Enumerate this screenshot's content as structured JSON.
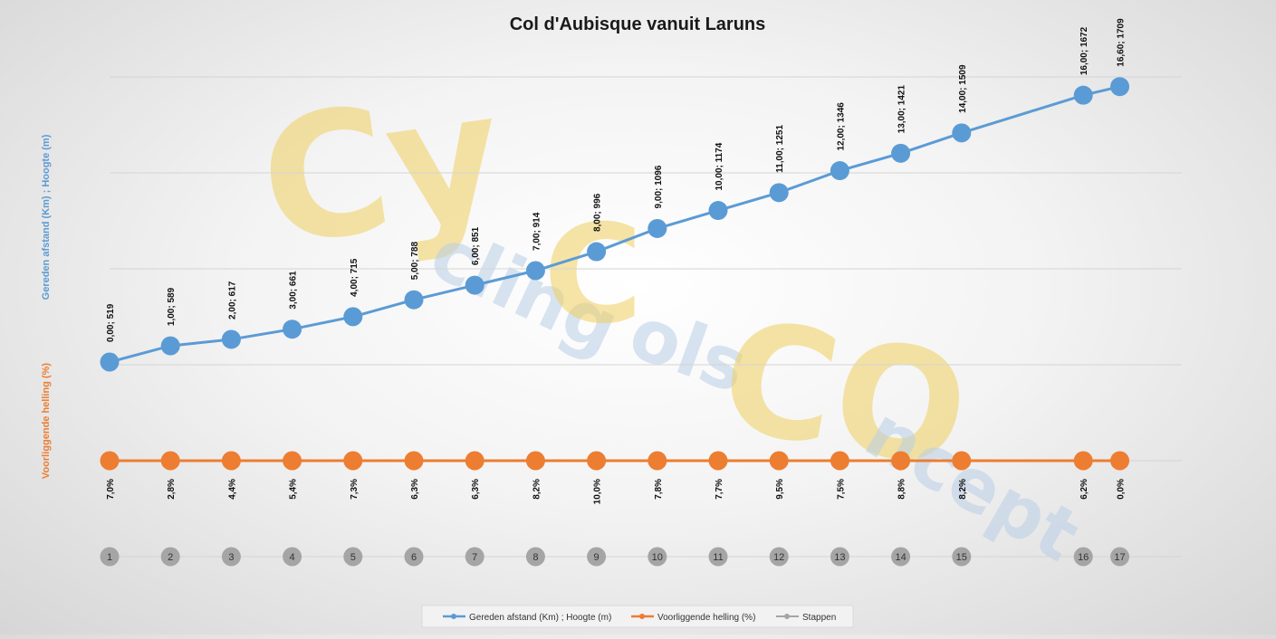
{
  "chart_data": {
    "type": "line",
    "title": "Col d'Aubisque vanuit Laruns",
    "ylabel_left_top": "Gereden afstand (Km) ;  Hoogte (m)",
    "ylabel_left_bottom": "Voorliggende helling (%)",
    "grid": true,
    "legend_position": "bottom",
    "colors": {
      "height": "#5b9bd5",
      "slope": "#ed7d31",
      "steps": "#a5a5a5"
    },
    "watermark": "CyclingColsConcept",
    "series": [
      {
        "name": "Gereden afstand (Km) ; Hoogte (m)",
        "x": [
          0.0,
          1.0,
          2.0,
          3.0,
          4.0,
          5.0,
          6.0,
          7.0,
          8.0,
          9.0,
          10.0,
          11.0,
          12.0,
          13.0,
          14.0,
          16.0,
          16.6
        ],
        "y": [
          519,
          589,
          617,
          661,
          715,
          788,
          851,
          914,
          996,
          1096,
          1174,
          1251,
          1346,
          1421,
          1509,
          1672,
          1709
        ],
        "labels": [
          "0,00; 519",
          "1,00; 589",
          "2,00; 617",
          "3,00; 661",
          "4,00; 715",
          "5,00; 788",
          "6,00; 851",
          "7,00; 914",
          "8,00; 996",
          "9,00; 1096",
          "10,00; 1174",
          "11,00; 1251",
          "12,00; 1346",
          "13,00; 1421",
          "14,00; 1509",
          "16,00; 1672",
          "16,60; 1709"
        ]
      },
      {
        "name": "Voorliggende helling (%)",
        "values": [
          7.0,
          2.8,
          4.4,
          5.4,
          7.3,
          6.3,
          6.3,
          8.2,
          10.0,
          7.8,
          7.7,
          9.5,
          7.5,
          8.8,
          8.2,
          6.2,
          0.0
        ],
        "labels": [
          "7,0%",
          "2,8%",
          "4,4%",
          "5,4%",
          "7,3%",
          "6,3%",
          "6,3%",
          "8,2%",
          "10,0%",
          "7,8%",
          "7,7%",
          "9,5%",
          "7,5%",
          "8,8%",
          "8,2%",
          "6,2%",
          "0,0%"
        ]
      },
      {
        "name": "Stappen",
        "labels": [
          "1",
          "2",
          "3",
          "4",
          "5",
          "6",
          "7",
          "8",
          "9",
          "10",
          "11",
          "12",
          "13",
          "14",
          "15",
          "16",
          "17"
        ]
      }
    ]
  }
}
